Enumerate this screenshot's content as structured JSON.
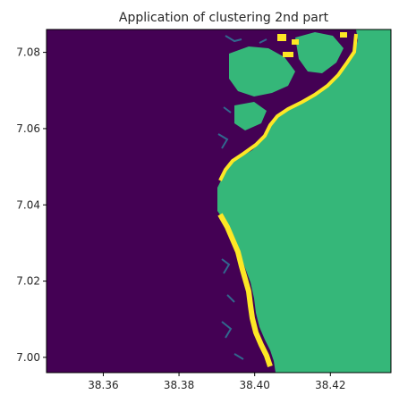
{
  "chart_data": {
    "type": "heatmap",
    "title": "Application of clustering 2nd part",
    "xlabel": "",
    "ylabel": "",
    "xlim": [
      38.345,
      38.436
    ],
    "ylim": [
      6.996,
      7.086
    ],
    "x_ticks": [
      38.36,
      38.38,
      38.4,
      38.42
    ],
    "x_tick_labels": [
      "38.36",
      "38.38",
      "38.40",
      "38.42"
    ],
    "y_ticks": [
      7.0,
      7.02,
      7.04,
      7.06,
      7.08
    ],
    "y_tick_labels": [
      "7.00",
      "7.02",
      "7.04",
      "7.06",
      "7.08"
    ],
    "grid": false,
    "legend": "none",
    "colormap": "viridis",
    "cluster_colors": {
      "0": "#440154",
      "1": "#31688e",
      "2": "#35b779",
      "3": "#fde725"
    },
    "regions": [
      {
        "cluster": 0,
        "description_x_range": [
          38.345,
          38.391
        ],
        "y_range": [
          6.996,
          7.086
        ]
      },
      {
        "cluster": 2,
        "x_range": [
          38.391,
          38.436
        ],
        "y_range": [
          6.996,
          7.086
        ]
      }
    ]
  }
}
